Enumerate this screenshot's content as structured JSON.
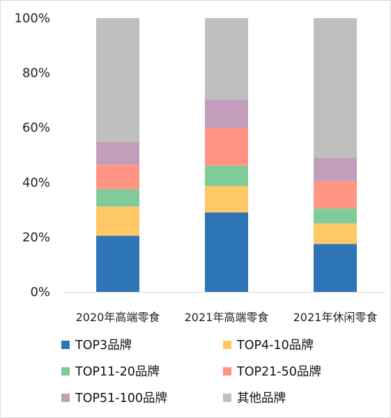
{
  "chart_data": {
    "type": "bar",
    "stacked": true,
    "normalized": true,
    "categories": [
      "2020年高端零食",
      "2021年高端零食",
      "2021年休闲零食"
    ],
    "ylim": [
      0,
      100
    ],
    "yticks": [
      "0%",
      "20%",
      "40%",
      "60%",
      "80%",
      "100%"
    ],
    "grid": false,
    "legend_position": "bottom",
    "series": [
      {
        "name": "TOP3品牌",
        "color": "#2e75b6",
        "values": [
          20.5,
          29.0,
          17.5
        ]
      },
      {
        "name": "TOP4-10品牌",
        "color": "#ffc866",
        "values": [
          10.7,
          9.7,
          7.5
        ]
      },
      {
        "name": "TOP11-20品牌",
        "color": "#7fcc9a",
        "values": [
          6.3,
          7.4,
          5.5
        ]
      },
      {
        "name": "TOP21-50品牌",
        "color": "#ff9582",
        "values": [
          9.0,
          13.8,
          9.9
        ]
      },
      {
        "name": "TOP51-100品牌",
        "color": "#c39ebc",
        "values": [
          8.2,
          10.3,
          8.6
        ]
      },
      {
        "name": "其他品牌",
        "color": "#bfbfbf",
        "values": [
          45.3,
          29.8,
          51.0
        ]
      }
    ]
  }
}
